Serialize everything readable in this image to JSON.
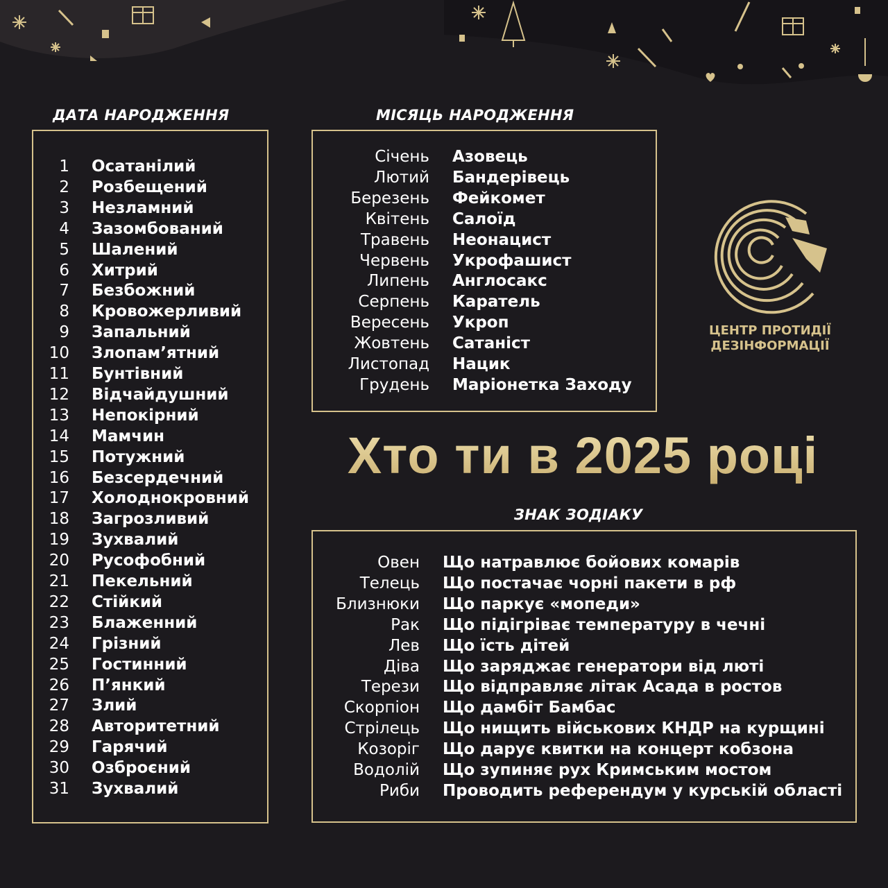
{
  "colors": {
    "background": "#1c1a1e",
    "gold": "#d6c28c",
    "text": "#ffffff"
  },
  "date": {
    "heading": "ДАТА НАРОДЖЕННЯ",
    "items": [
      {
        "n": "1",
        "v": "Осатанілий"
      },
      {
        "n": "2",
        "v": "Розбещений"
      },
      {
        "n": "3",
        "v": "Незламний"
      },
      {
        "n": "4",
        "v": "Зазомбований"
      },
      {
        "n": "5",
        "v": "Шалений"
      },
      {
        "n": "6",
        "v": "Хитрий"
      },
      {
        "n": "7",
        "v": "Безбожний"
      },
      {
        "n": "8",
        "v": "Кровожерливий"
      },
      {
        "n": "9",
        "v": "Запальний"
      },
      {
        "n": "10",
        "v": "Злопам’ятний"
      },
      {
        "n": "11",
        "v": "Бунтівний"
      },
      {
        "n": "12",
        "v": "Відчайдушний"
      },
      {
        "n": "13",
        "v": "Непокірний"
      },
      {
        "n": "14",
        "v": "Мамчин"
      },
      {
        "n": "15",
        "v": "Потужний"
      },
      {
        "n": "16",
        "v": "Безсердечний"
      },
      {
        "n": "17",
        "v": "Холоднокровний"
      },
      {
        "n": "18",
        "v": "Загрозливий"
      },
      {
        "n": "19",
        "v": "Зухвалий"
      },
      {
        "n": "20",
        "v": "Русофобний"
      },
      {
        "n": "21",
        "v": "Пекельний"
      },
      {
        "n": "22",
        "v": "Стійкий"
      },
      {
        "n": "23",
        "v": "Блаженний"
      },
      {
        "n": "24",
        "v": "Грізний"
      },
      {
        "n": "25",
        "v": "Гостинний"
      },
      {
        "n": "26",
        "v": "П’янкий"
      },
      {
        "n": "27",
        "v": "Злий"
      },
      {
        "n": "28",
        "v": "Авторитетний"
      },
      {
        "n": "29",
        "v": "Гарячий"
      },
      {
        "n": "30",
        "v": "Озброєний"
      },
      {
        "n": "31",
        "v": "Зухвалий"
      }
    ]
  },
  "month": {
    "heading": "МІСЯЦЬ НАРОДЖЕННЯ",
    "items": [
      {
        "n": "Січень",
        "v": "Азовець"
      },
      {
        "n": "Лютий",
        "v": "Бандерівець"
      },
      {
        "n": "Березень",
        "v": "Фейкомет"
      },
      {
        "n": "Квітень",
        "v": "Салоїд"
      },
      {
        "n": "Травень",
        "v": "Неонацист"
      },
      {
        "n": "Червень",
        "v": "Укрофашист"
      },
      {
        "n": "Липень",
        "v": "Англосакс"
      },
      {
        "n": "Серпень",
        "v": "Каратель"
      },
      {
        "n": "Вересень",
        "v": "Укроп"
      },
      {
        "n": "Жовтень",
        "v": "Сатаніст"
      },
      {
        "n": "Листопад",
        "v": "Нацик"
      },
      {
        "n": "Грудень",
        "v": "Маріонетка Заходу"
      }
    ]
  },
  "title": "Хто ти в 2025 році",
  "zodiac": {
    "heading": "ЗНАК ЗОДІАКУ",
    "items": [
      {
        "n": "Овен",
        "v": "Що натравлює бойових комарів"
      },
      {
        "n": "Телець",
        "v": "Що постачає чорні пакети в рф"
      },
      {
        "n": "Близнюки",
        "v": "Що паркує «мопеди»"
      },
      {
        "n": "Рак",
        "v": "Що підігріває температуру в чечні"
      },
      {
        "n": "Лев",
        "v": "Що їсть дітей"
      },
      {
        "n": "Діва",
        "v": "Що заряджає генератори від люті"
      },
      {
        "n": "Терези",
        "v": "Що відправляє літак Асада в ростов"
      },
      {
        "n": "Скорпіон",
        "v": "Що дамбіт Бамбас"
      },
      {
        "n": "Стрілець",
        "v": "Що нищить військових КНДР на курщині"
      },
      {
        "n": "Козоріг",
        "v": "Що дарує квитки на концерт кобзона"
      },
      {
        "n": "Водолій",
        "v": "Що зупиняє рух Кримським мостом"
      },
      {
        "n": "Риби",
        "v": "Проводить референдум у курській області"
      }
    ]
  },
  "logo": {
    "line1": "ЦЕНТР ПРОТИДІЇ",
    "line2": "ДЕЗІНФОРМАЦІЇ",
    "icon": "labyrinth-eagle-icon"
  }
}
